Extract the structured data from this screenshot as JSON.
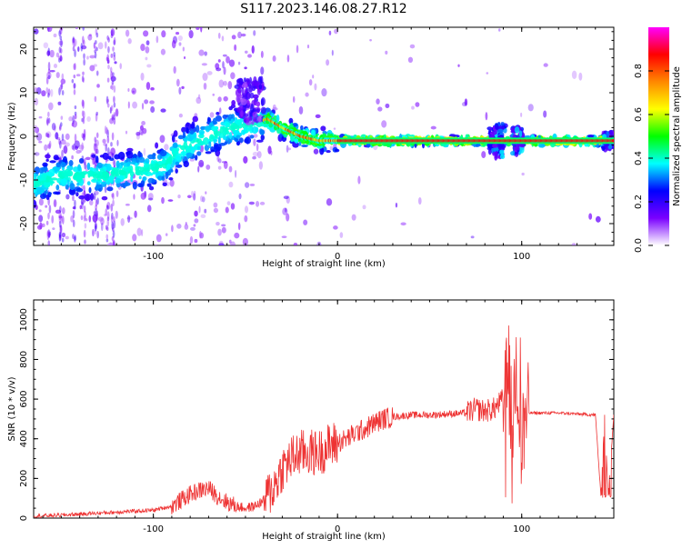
{
  "title": "S117.2023.146.08.27.R12",
  "chart_data": [
    {
      "type": "heatmap",
      "title": "S117.2023.146.08.27.R12",
      "xlabel": "Height of straight line (km)",
      "ylabel": "Frequency (Hz)",
      "xlim": [
        -165,
        150
      ],
      "ylim": [
        -25,
        25
      ],
      "xticks": [
        -100,
        0,
        100
      ],
      "yticks": [
        20,
        10,
        0,
        -10,
        -20
      ],
      "colorbar": {
        "label": "Normalized spectral amplitude",
        "range": [
          0,
          1
        ],
        "ticks": [
          "0.0",
          "0.2",
          "0.4",
          "0.6",
          "0.8"
        ],
        "colors": [
          "#ffffff",
          "#7a00ff",
          "#0000ff",
          "#00ffff",
          "#00ff00",
          "#ffff00",
          "#ff8800",
          "#ff0000",
          "#ff00ff"
        ]
      },
      "ridge": {
        "x": [
          -165,
          -150,
          -130,
          -110,
          -95,
          -85,
          -75,
          -65,
          -55,
          -45,
          -38,
          -30,
          -20,
          -10,
          0,
          10,
          30,
          60,
          85,
          90,
          100,
          150
        ],
        "y": [
          -11,
          -9,
          -9,
          -8,
          -7,
          -3,
          -1,
          1,
          2,
          3,
          4,
          2,
          0,
          -1,
          -1,
          -1,
          -1,
          -1,
          -1,
          -1,
          -1,
          -1
        ]
      }
    },
    {
      "type": "line",
      "xlabel": "Height of straight line (km)",
      "ylabel": "SNR (10 * v/v)",
      "xlim": [
        -165,
        150
      ],
      "ylim": [
        0,
        1100
      ],
      "xticks": [
        -100,
        0,
        100
      ],
      "yticks": [
        0,
        200,
        400,
        600,
        800,
        1000
      ],
      "color": "#ee3333",
      "series": [
        {
          "x": [
            -165,
            -150,
            -140,
            -130,
            -120,
            -110,
            -100,
            -90,
            -85,
            -80,
            -75,
            -70,
            -65,
            -60,
            -55,
            -50,
            -45,
            -40,
            -35,
            -30,
            -25,
            -20,
            -15,
            -10,
            -5,
            0,
            5,
            10,
            15,
            20,
            25,
            30,
            40,
            50,
            60,
            70,
            75,
            80,
            85,
            90,
            93,
            95,
            97,
            100,
            102,
            105,
            110,
            120,
            130,
            140,
            143,
            145,
            147,
            150
          ],
          "y": [
            10,
            15,
            20,
            25,
            30,
            35,
            40,
            60,
            90,
            120,
            140,
            150,
            110,
            80,
            60,
            50,
            60,
            90,
            150,
            250,
            300,
            330,
            330,
            330,
            360,
            380,
            400,
            430,
            450,
            480,
            500,
            510,
            520,
            520,
            525,
            530,
            550,
            540,
            550,
            600,
            700,
            450,
            800,
            350,
            530,
            530,
            530,
            530,
            525,
            520,
            110,
            520,
            115,
            525
          ]
        }
      ]
    }
  ]
}
